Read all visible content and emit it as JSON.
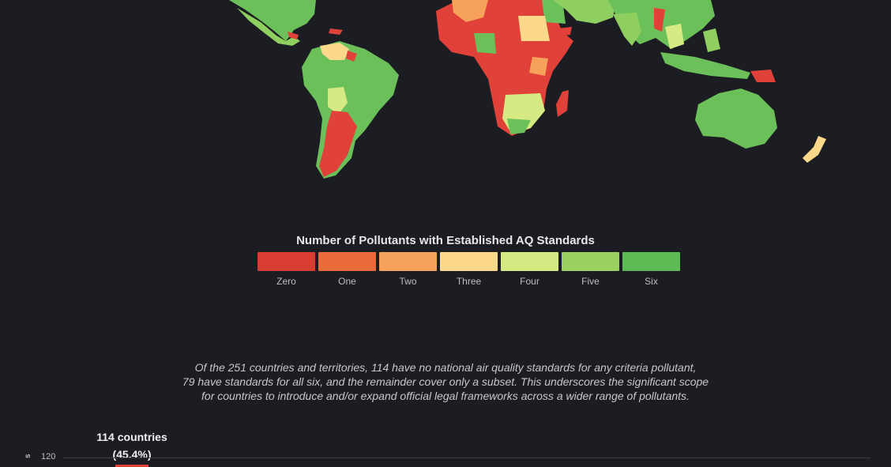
{
  "legend": {
    "title": "Number of Pollutants with Established AQ Standards",
    "items": [
      {
        "label": "Zero",
        "color": "#d73e31"
      },
      {
        "label": "One",
        "color": "#ea6a3a"
      },
      {
        "label": "Two",
        "color": "#f6a25a"
      },
      {
        "label": "Three",
        "color": "#fbd88a"
      },
      {
        "label": "Four",
        "color": "#d6ea84"
      },
      {
        "label": "Five",
        "color": "#9bd161"
      },
      {
        "label": "Six",
        "color": "#5dba55"
      }
    ]
  },
  "caption": {
    "line1": "Of the 251 countries and territories, 114 have no national air quality standards for any criteria pollutant,",
    "line2": "79 have standards for all six, and the remainder cover only a subset. This underscores the significant scope",
    "line3": "for countries to introduce and/or expand official legal frameworks across a wider range of pollutants."
  },
  "chart_data": {
    "type": "bar",
    "annotation_line1": "114 countries",
    "annotation_line2": "(45.4%)",
    "y_tick": "120",
    "ylabel_fragment": "s"
  }
}
